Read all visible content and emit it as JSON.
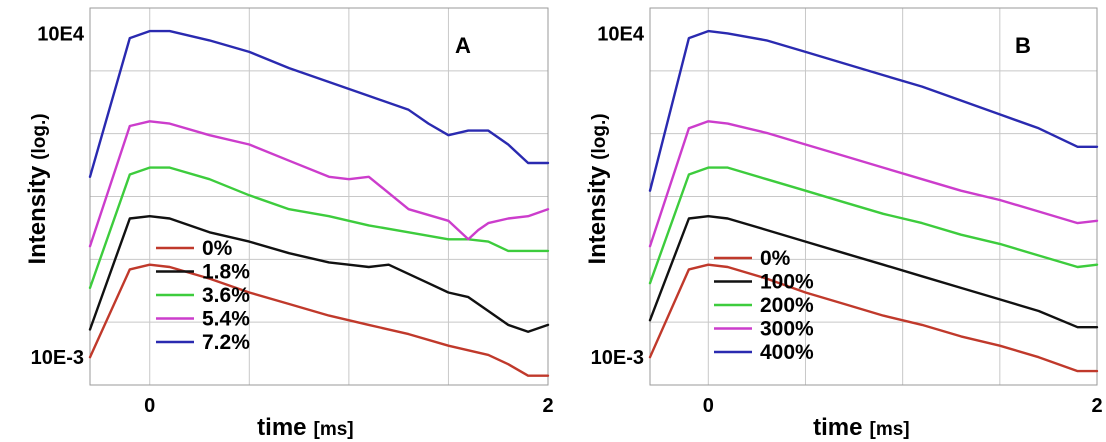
{
  "chart_data": [
    {
      "type": "line",
      "panel_label": "A",
      "xlabel": "time",
      "xunit": "[ms]",
      "ylabel": "Intensity",
      "yunit": "(log.)",
      "xlim": [
        -0.3,
        2
      ],
      "yscale": "log",
      "ylim_log10": [
        -3.6,
        4.55
      ],
      "x_ticks": [
        {
          "value": 0,
          "label": "0"
        },
        {
          "value": 2,
          "label": "2"
        }
      ],
      "y_ticks": [
        {
          "log10": 4,
          "label": "10E4"
        },
        {
          "log10": -3,
          "label": "10E-3"
        }
      ],
      "grid": true,
      "legend_position": "bottom-left",
      "series": [
        {
          "name": "0%",
          "color": "#c0392b",
          "x": [
            -0.3,
            -0.1,
            0.0,
            0.1,
            0.3,
            0.5,
            0.7,
            0.9,
            1.1,
            1.3,
            1.5,
            1.7,
            1.8,
            1.9,
            2.0
          ],
          "log10": [
            -3.0,
            -1.1,
            -1.0,
            -1.05,
            -1.3,
            -1.6,
            -1.85,
            -2.1,
            -2.3,
            -2.5,
            -2.75,
            -2.95,
            -3.15,
            -3.4,
            -3.4
          ]
        },
        {
          "name": "1.8%",
          "color": "#111111",
          "x": [
            -0.3,
            -0.1,
            0.0,
            0.1,
            0.3,
            0.5,
            0.7,
            0.9,
            1.0,
            1.1,
            1.2,
            1.4,
            1.5,
            1.6,
            1.7,
            1.8,
            1.9,
            2.0
          ],
          "log10": [
            -2.4,
            0.0,
            0.05,
            0.0,
            -0.3,
            -0.5,
            -0.75,
            -0.95,
            -1.0,
            -1.05,
            -1.0,
            -1.4,
            -1.6,
            -1.7,
            -2.0,
            -2.3,
            -2.45,
            -2.3
          ]
        },
        {
          "name": "3.6%",
          "color": "#3dcc3d",
          "x": [
            -0.3,
            -0.1,
            0.0,
            0.1,
            0.3,
            0.5,
            0.7,
            0.9,
            1.1,
            1.3,
            1.5,
            1.6,
            1.7,
            1.8,
            1.9,
            2.0
          ],
          "log10": [
            -1.5,
            0.95,
            1.1,
            1.1,
            0.85,
            0.5,
            0.2,
            0.05,
            -0.15,
            -0.3,
            -0.45,
            -0.45,
            -0.5,
            -0.7,
            -0.7,
            -0.7
          ]
        },
        {
          "name": "5.4%",
          "color": "#cc3dcc",
          "x": [
            -0.3,
            -0.1,
            0.0,
            0.1,
            0.3,
            0.5,
            0.7,
            0.9,
            1.0,
            1.1,
            1.3,
            1.5,
            1.6,
            1.65,
            1.7,
            1.8,
            1.9,
            2.0
          ],
          "log10": [
            -0.6,
            2.0,
            2.1,
            2.05,
            1.8,
            1.6,
            1.25,
            0.9,
            0.85,
            0.9,
            0.2,
            -0.05,
            -0.45,
            -0.25,
            -0.1,
            0.0,
            0.05,
            0.2
          ]
        },
        {
          "name": "7.2%",
          "color": "#2a2ab0",
          "x": [
            -0.3,
            -0.1,
            0.0,
            0.1,
            0.3,
            0.5,
            0.7,
            0.9,
            1.1,
            1.3,
            1.4,
            1.5,
            1.6,
            1.7,
            1.8,
            1.9,
            2.0
          ],
          "log10": [
            0.9,
            3.9,
            4.05,
            4.05,
            3.85,
            3.6,
            3.25,
            2.95,
            2.65,
            2.35,
            2.05,
            1.8,
            1.9,
            1.9,
            1.6,
            1.2,
            1.2
          ]
        }
      ]
    },
    {
      "type": "line",
      "panel_label": "B",
      "xlabel": "time",
      "xunit": "[ms]",
      "ylabel": "Intensity",
      "yunit": "(log.)",
      "xlim": [
        -0.3,
        2
      ],
      "yscale": "log",
      "ylim_log10": [
        -3.6,
        4.55
      ],
      "x_ticks": [
        {
          "value": 0,
          "label": "0"
        },
        {
          "value": 2,
          "label": "2"
        }
      ],
      "y_ticks": [
        {
          "log10": 4,
          "label": "10E4"
        },
        {
          "log10": -3,
          "label": "10E-3"
        }
      ],
      "grid": true,
      "legend_position": "bottom-left",
      "series": [
        {
          "name": "0%",
          "color": "#c0392b",
          "x": [
            -0.3,
            -0.1,
            0.0,
            0.1,
            0.3,
            0.5,
            0.7,
            0.9,
            1.1,
            1.3,
            1.5,
            1.7,
            1.9,
            2.0
          ],
          "log10": [
            -3.0,
            -1.1,
            -1.0,
            -1.05,
            -1.3,
            -1.6,
            -1.85,
            -2.1,
            -2.3,
            -2.55,
            -2.75,
            -3.0,
            -3.3,
            -3.3
          ]
        },
        {
          "name": "100%",
          "color": "#111111",
          "x": [
            -0.3,
            -0.1,
            0.0,
            0.1,
            0.3,
            0.5,
            0.7,
            0.9,
            1.1,
            1.3,
            1.5,
            1.7,
            1.9,
            2.0
          ],
          "log10": [
            -2.2,
            0.0,
            0.05,
            0.0,
            -0.25,
            -0.5,
            -0.75,
            -1.0,
            -1.25,
            -1.5,
            -1.75,
            -2.0,
            -2.35,
            -2.35
          ]
        },
        {
          "name": "200%",
          "color": "#3dcc3d",
          "x": [
            -0.3,
            -0.1,
            0.0,
            0.1,
            0.3,
            0.5,
            0.7,
            0.9,
            1.1,
            1.3,
            1.5,
            1.7,
            1.9,
            2.0
          ],
          "log10": [
            -1.4,
            0.95,
            1.1,
            1.1,
            0.85,
            0.6,
            0.35,
            0.1,
            -0.1,
            -0.35,
            -0.55,
            -0.8,
            -1.05,
            -1.0
          ]
        },
        {
          "name": "300%",
          "color": "#cc3dcc",
          "x": [
            -0.3,
            -0.1,
            0.0,
            0.1,
            0.3,
            0.5,
            0.7,
            0.9,
            1.1,
            1.3,
            1.5,
            1.7,
            1.9,
            2.0
          ],
          "log10": [
            -0.6,
            1.95,
            2.1,
            2.05,
            1.85,
            1.6,
            1.35,
            1.1,
            0.85,
            0.6,
            0.4,
            0.15,
            -0.1,
            -0.05
          ]
        },
        {
          "name": "400%",
          "color": "#2a2ab0",
          "x": [
            -0.3,
            -0.1,
            0.0,
            0.1,
            0.3,
            0.5,
            0.7,
            0.9,
            1.1,
            1.3,
            1.5,
            1.7,
            1.9,
            2.0
          ],
          "log10": [
            0.6,
            3.9,
            4.05,
            4.0,
            3.85,
            3.6,
            3.35,
            3.1,
            2.85,
            2.55,
            2.25,
            1.95,
            1.55,
            1.55
          ]
        }
      ]
    }
  ]
}
